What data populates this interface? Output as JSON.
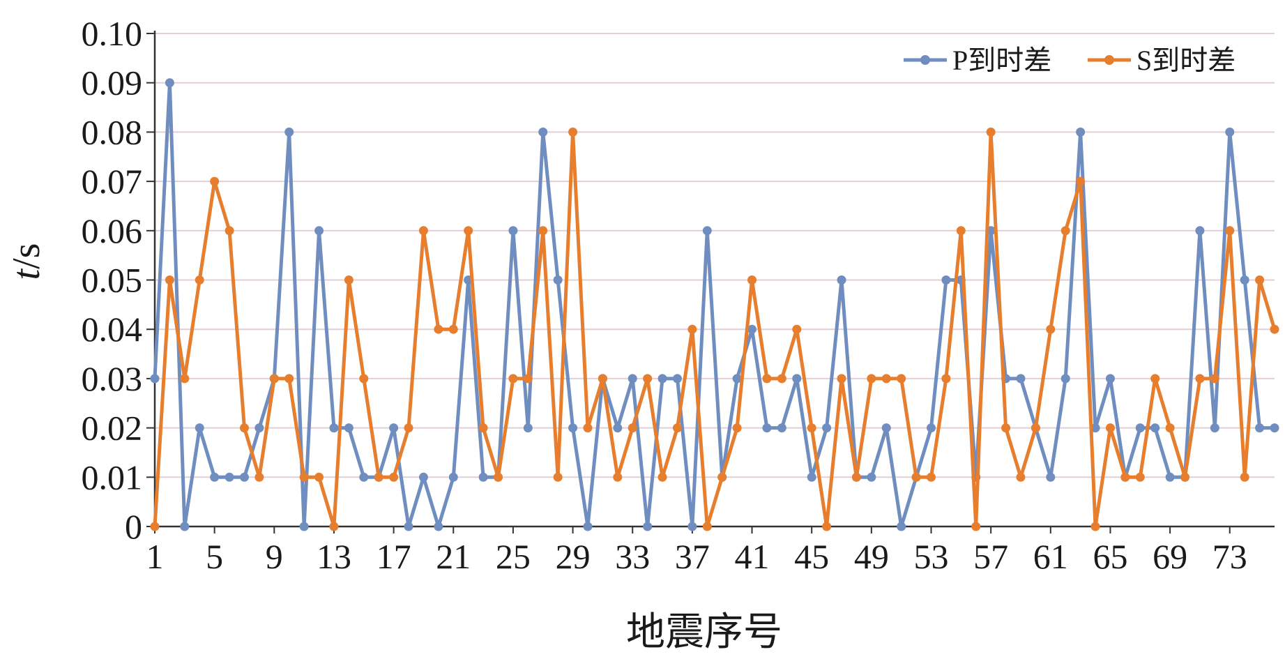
{
  "chart_data": {
    "type": "line",
    "xlabel": "地震序号",
    "ylabel_italic": "t",
    "ylabel_unit": "/s",
    "ylim": [
      0,
      0.1
    ],
    "y_ticks": [
      "0",
      "0.01",
      "0.02",
      "0.03",
      "0.04",
      "0.05",
      "0.06",
      "0.07",
      "0.08",
      "0.09",
      "0.10"
    ],
    "x_ticks": [
      1,
      5,
      9,
      13,
      17,
      21,
      25,
      29,
      33,
      37,
      41,
      45,
      49,
      53,
      57,
      61,
      65,
      69,
      73
    ],
    "x_range": [
      1,
      76
    ],
    "grid": "horizontal",
    "legend": "top-right",
    "series": [
      {
        "name": "P到时差",
        "color": "#6f8ebf",
        "values": [
          0.03,
          0.09,
          0,
          0.02,
          0.01,
          0.01,
          0.01,
          0.02,
          0.03,
          0.08,
          0,
          0.06,
          0.02,
          0.02,
          0.01,
          0.01,
          0.02,
          0,
          0.01,
          0,
          0.01,
          0.05,
          0.01,
          0.01,
          0.06,
          0.02,
          0.08,
          0.05,
          0.02,
          0,
          0.03,
          0.02,
          0.03,
          0,
          0.03,
          0.03,
          0,
          0.06,
          0.01,
          0.03,
          0.04,
          0.02,
          0.02,
          0.03,
          0.01,
          0.02,
          0.05,
          0.01,
          0.01,
          0.02,
          0,
          0.01,
          0.02,
          0.05,
          0.05,
          0.01,
          0.06,
          0.03,
          0.03,
          0.02,
          0.01,
          0.03,
          0.08,
          0.02,
          0.03,
          0.01,
          0.02,
          0.02,
          0.01,
          0.01,
          0.06,
          0.02,
          0.08,
          0.05,
          0.02,
          0.02
        ]
      },
      {
        "name": "S到时差",
        "color": "#e67e2e",
        "values": [
          0,
          0.05,
          0.03,
          0.05,
          0.07,
          0.06,
          0.02,
          0.01,
          0.03,
          0.03,
          0.01,
          0.01,
          0,
          0.05,
          0.03,
          0.01,
          0.01,
          0.02,
          0.06,
          0.04,
          0.04,
          0.06,
          0.02,
          0.01,
          0.03,
          0.03,
          0.06,
          0.01,
          0.08,
          0.02,
          0.03,
          0.01,
          0.02,
          0.03,
          0.01,
          0.02,
          0.04,
          0,
          0.01,
          0.02,
          0.05,
          0.03,
          0.03,
          0.04,
          0.02,
          0,
          0.03,
          0.01,
          0.03,
          0.03,
          0.03,
          0.01,
          0.01,
          0.03,
          0.06,
          0,
          0.08,
          0.02,
          0.01,
          0.02,
          0.04,
          0.06,
          0.07,
          0,
          0.02,
          0.01,
          0.01,
          0.03,
          0.02,
          0.01,
          0.03,
          0.03,
          0.06,
          0.01,
          0.05,
          0.04
        ]
      }
    ]
  }
}
